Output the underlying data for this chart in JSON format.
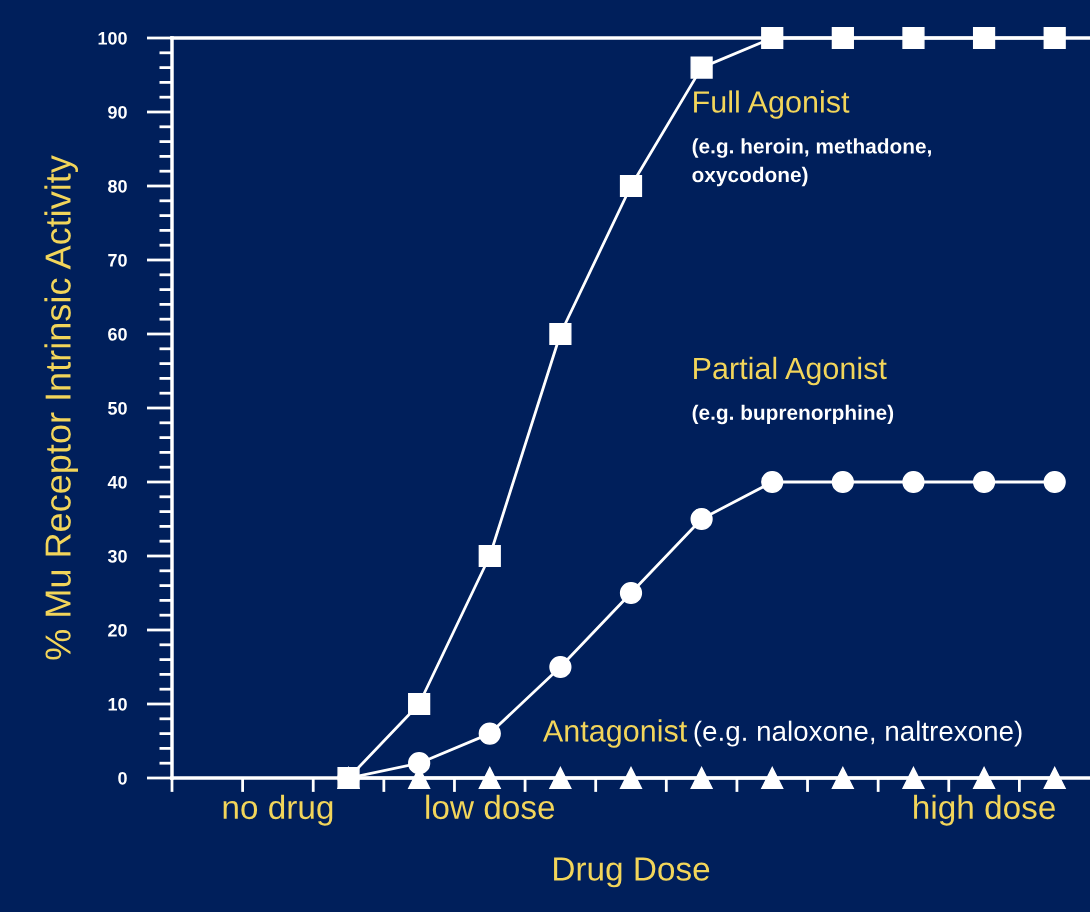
{
  "chart_data": {
    "type": "line",
    "xlabel": "Drug Dose",
    "ylabel": "% Mu Receptor Intrinsic Activity",
    "categories": [
      null,
      "no drug",
      null,
      null,
      "low dose",
      null,
      null,
      null,
      null,
      null,
      null,
      "high dose",
      null
    ],
    "ylim": [
      0,
      100
    ],
    "yticks": [
      0,
      10,
      20,
      30,
      40,
      50,
      60,
      70,
      80,
      90,
      100
    ],
    "grid": false,
    "legend": false,
    "series": [
      {
        "name": "Antagonist",
        "color": "#ffffff",
        "marker": "triangle",
        "values": [
          null,
          null,
          0,
          0,
          0,
          0,
          0,
          0,
          0,
          0,
          0,
          0,
          0
        ]
      },
      {
        "name": "Partial Agonist",
        "color": "#ffffff",
        "marker": "circle",
        "values": [
          null,
          null,
          0,
          2,
          6,
          15,
          25,
          35,
          40,
          40,
          40,
          40,
          40
        ]
      },
      {
        "name": "Full Agonist",
        "color": "#ffffff",
        "marker": "square",
        "values": [
          null,
          null,
          0,
          10,
          30,
          60,
          80,
          96,
          100,
          100,
          100,
          100,
          100
        ]
      }
    ],
    "annotations": [
      "(e.g. naloxone, naltrexone)",
      "(e.g. buprenorphine)",
      "(e.g. heroin, methadone,\noxycodone)"
    ]
  }
}
